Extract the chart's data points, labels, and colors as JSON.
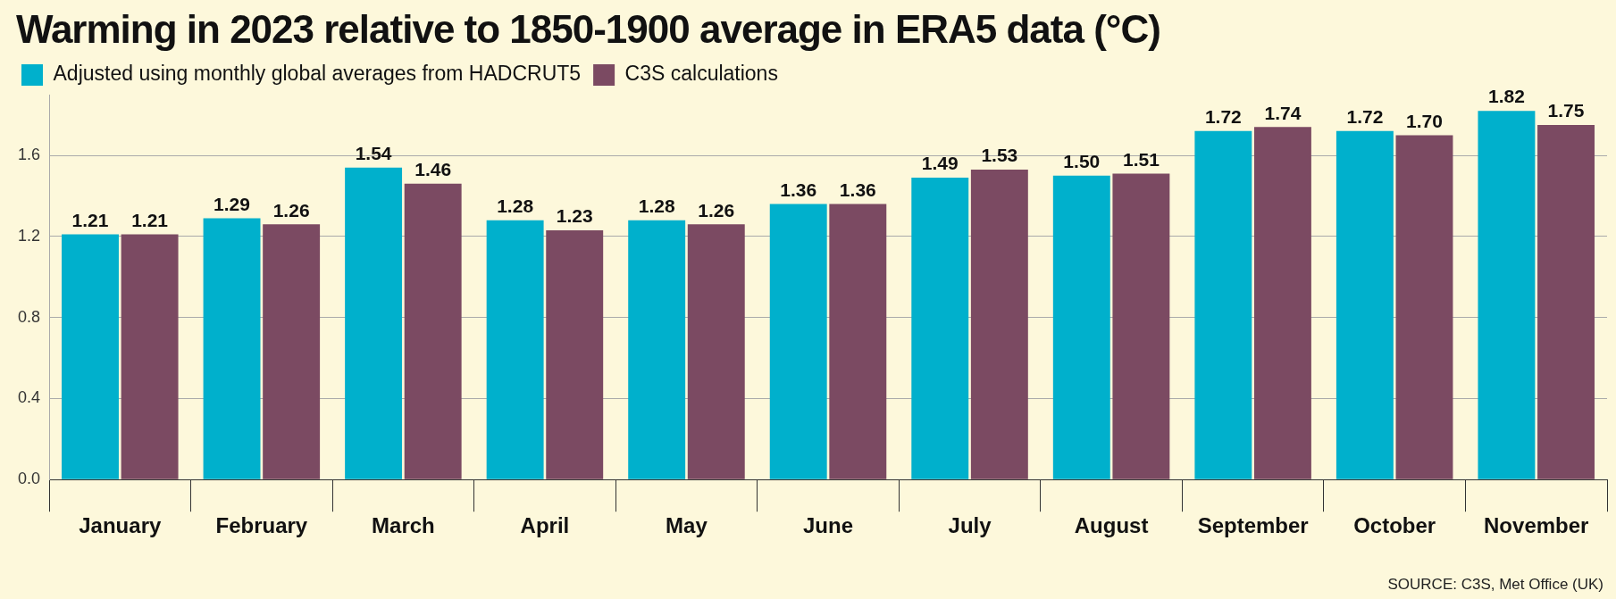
{
  "chart_data": {
    "type": "bar",
    "title": "Warming in 2023 relative to 1850-1900 average in ERA5 data (°C)",
    "categories": [
      "January",
      "February",
      "March",
      "April",
      "May",
      "June",
      "July",
      "August",
      "September",
      "October",
      "November"
    ],
    "series": [
      {
        "name": "Adjusted using monthly global averages from HADCRUT5",
        "color": "#00b0cc",
        "values": [
          1.21,
          1.29,
          1.54,
          1.28,
          1.28,
          1.36,
          1.49,
          1.5,
          1.72,
          1.72,
          1.82
        ],
        "value_labels": [
          "1.21",
          "1.29",
          "1.54",
          "1.28",
          "1.28",
          "1.36",
          "1.49",
          "1.50",
          "1.72",
          "1.72",
          "1.82"
        ]
      },
      {
        "name": "C3S calculations",
        "color": "#7b4a62",
        "values": [
          1.21,
          1.26,
          1.46,
          1.23,
          1.26,
          1.36,
          1.53,
          1.51,
          1.74,
          1.7,
          1.75
        ],
        "value_labels": [
          "1.21",
          "1.26",
          "1.46",
          "1.23",
          "1.26",
          "1.36",
          "1.53",
          "1.51",
          "1.74",
          "1.70",
          "1.75"
        ]
      }
    ],
    "ylim": [
      0,
      1.9
    ],
    "yticks": [
      {
        "value": 0,
        "label": "0.0"
      },
      0.4,
      0.8,
      1.2,
      1.6
    ],
    "grid": "y",
    "legend": "top left",
    "annotations": [
      "SOURCE: C3S, Met Office (UK)"
    ]
  }
}
